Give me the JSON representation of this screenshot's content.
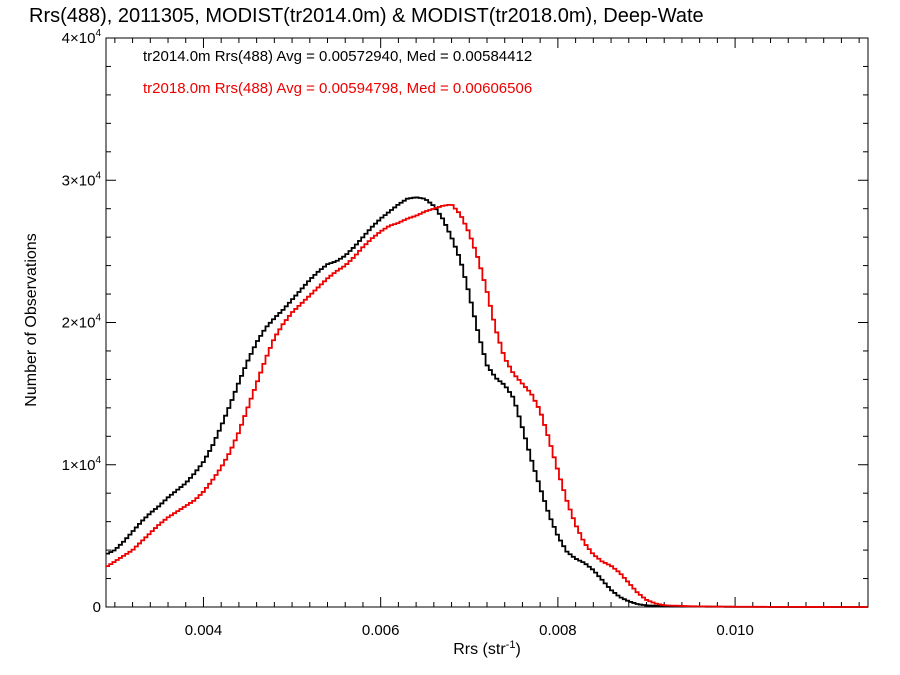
{
  "chart_data": {
    "type": "line",
    "title": "Rrs(488), 2011305, MODIST(tr2014.0m) & MODIST(tr2018.0m), Deep-Wate",
    "xlabel": "Rrs (str",
    "xlabel_sup": "-1",
    "xlabel_end": ")",
    "ylabel": "Number of Observations",
    "xlim": [
      0.0029,
      0.0115
    ],
    "ylim": [
      0,
      40000
    ],
    "x_ticks": [
      0.004,
      0.006,
      0.008,
      0.01
    ],
    "x_tick_labels": [
      "0.004",
      "0.006",
      "0.008",
      "0.010"
    ],
    "y_ticks": [
      0,
      10000,
      20000,
      30000,
      40000
    ],
    "y_tick_labels": [
      {
        "base": "0",
        "exp": ""
      },
      {
        "base": "1×10",
        "exp": "4"
      },
      {
        "base": "2×10",
        "exp": "4"
      },
      {
        "base": "3×10",
        "exp": "4"
      },
      {
        "base": "4×10",
        "exp": "4"
      }
    ],
    "grid": false,
    "step": true,
    "annotations": [
      "tr2014.0m Rrs(488) Avg = 0.00572940, Med = 0.00584412",
      "tr2018.0m Rrs(488) Avg = 0.00594798, Med = 0.00606506"
    ],
    "series": [
      {
        "name": "tr2014.0m",
        "color": "#000000",
        "points": [
          [
            0.0029,
            3700
          ],
          [
            0.003,
            4000
          ],
          [
            0.0031,
            4600
          ],
          [
            0.0032,
            5300
          ],
          [
            0.0033,
            6000
          ],
          [
            0.0034,
            6600
          ],
          [
            0.0035,
            7100
          ],
          [
            0.0036,
            7700
          ],
          [
            0.0037,
            8200
          ],
          [
            0.0038,
            8700
          ],
          [
            0.0039,
            9400
          ],
          [
            0.004,
            10200
          ],
          [
            0.0041,
            11300
          ],
          [
            0.0042,
            12700
          ],
          [
            0.0043,
            14200
          ],
          [
            0.0044,
            15800
          ],
          [
            0.0045,
            17300
          ],
          [
            0.0046,
            18600
          ],
          [
            0.0047,
            19600
          ],
          [
            0.0048,
            20300
          ],
          [
            0.0049,
            20900
          ],
          [
            0.005,
            21600
          ],
          [
            0.0051,
            22300
          ],
          [
            0.0052,
            23000
          ],
          [
            0.0053,
            23600
          ],
          [
            0.0054,
            24100
          ],
          [
            0.0055,
            24300
          ],
          [
            0.0056,
            24700
          ],
          [
            0.0057,
            25300
          ],
          [
            0.0058,
            26000
          ],
          [
            0.0059,
            26700
          ],
          [
            0.006,
            27300
          ],
          [
            0.0061,
            27800
          ],
          [
            0.0062,
            28300
          ],
          [
            0.0063,
            28700
          ],
          [
            0.0064,
            28800
          ],
          [
            0.0065,
            28700
          ],
          [
            0.0066,
            28200
          ],
          [
            0.0067,
            27300
          ],
          [
            0.0068,
            26000
          ],
          [
            0.0069,
            24400
          ],
          [
            0.007,
            22000
          ],
          [
            0.0071,
            19300
          ],
          [
            0.0072,
            17000
          ],
          [
            0.0073,
            16100
          ],
          [
            0.0074,
            15600
          ],
          [
            0.0075,
            14700
          ],
          [
            0.0076,
            12600
          ],
          [
            0.0077,
            10400
          ],
          [
            0.0078,
            8400
          ],
          [
            0.0079,
            6500
          ],
          [
            0.008,
            5000
          ],
          [
            0.0081,
            3900
          ],
          [
            0.0082,
            3400
          ],
          [
            0.0083,
            3100
          ],
          [
            0.0084,
            2600
          ],
          [
            0.0085,
            1900
          ],
          [
            0.0086,
            1200
          ],
          [
            0.0087,
            700
          ],
          [
            0.0088,
            400
          ],
          [
            0.0089,
            200
          ],
          [
            0.009,
            110
          ],
          [
            0.0092,
            60
          ],
          [
            0.0095,
            30
          ],
          [
            0.01,
            10
          ],
          [
            0.0105,
            5
          ],
          [
            0.011,
            2
          ],
          [
            0.0115,
            0
          ]
        ]
      },
      {
        "name": "tr2018.0m",
        "color": "#ee0000",
        "points": [
          [
            0.0029,
            2800
          ],
          [
            0.003,
            3200
          ],
          [
            0.0031,
            3600
          ],
          [
            0.0032,
            4000
          ],
          [
            0.0033,
            4600
          ],
          [
            0.0034,
            5200
          ],
          [
            0.0035,
            5800
          ],
          [
            0.0036,
            6300
          ],
          [
            0.0037,
            6700
          ],
          [
            0.0038,
            7100
          ],
          [
            0.0039,
            7500
          ],
          [
            0.004,
            8100
          ],
          [
            0.0041,
            8900
          ],
          [
            0.0042,
            9800
          ],
          [
            0.0043,
            10900
          ],
          [
            0.0044,
            12300
          ],
          [
            0.0045,
            14000
          ],
          [
            0.0046,
            15700
          ],
          [
            0.0047,
            17400
          ],
          [
            0.0048,
            18900
          ],
          [
            0.0049,
            19900
          ],
          [
            0.005,
            20700
          ],
          [
            0.0051,
            21300
          ],
          [
            0.0052,
            21900
          ],
          [
            0.0053,
            22500
          ],
          [
            0.0054,
            23100
          ],
          [
            0.0055,
            23600
          ],
          [
            0.0056,
            24000
          ],
          [
            0.0057,
            24600
          ],
          [
            0.0058,
            25300
          ],
          [
            0.0059,
            25900
          ],
          [
            0.006,
            26400
          ],
          [
            0.0061,
            26800
          ],
          [
            0.0062,
            27000
          ],
          [
            0.0063,
            27300
          ],
          [
            0.0064,
            27500
          ],
          [
            0.0065,
            27800
          ],
          [
            0.0066,
            28000
          ],
          [
            0.0067,
            28200
          ],
          [
            0.0068,
            28300
          ],
          [
            0.0069,
            27600
          ],
          [
            0.007,
            26300
          ],
          [
            0.0071,
            24500
          ],
          [
            0.0072,
            22200
          ],
          [
            0.0073,
            19500
          ],
          [
            0.0074,
            17500
          ],
          [
            0.0075,
            16400
          ],
          [
            0.0076,
            15700
          ],
          [
            0.0077,
            15000
          ],
          [
            0.0078,
            13800
          ],
          [
            0.0079,
            11800
          ],
          [
            0.008,
            9600
          ],
          [
            0.0081,
            7500
          ],
          [
            0.0082,
            5800
          ],
          [
            0.0083,
            4500
          ],
          [
            0.0084,
            3700
          ],
          [
            0.0085,
            3200
          ],
          [
            0.0086,
            2900
          ],
          [
            0.0087,
            2400
          ],
          [
            0.0088,
            1700
          ],
          [
            0.0089,
            1000
          ],
          [
            0.009,
            500
          ],
          [
            0.0091,
            250
          ],
          [
            0.0092,
            120
          ],
          [
            0.0095,
            50
          ],
          [
            0.01,
            20
          ],
          [
            0.0105,
            8
          ],
          [
            0.011,
            3
          ],
          [
            0.0115,
            0
          ]
        ]
      }
    ]
  }
}
